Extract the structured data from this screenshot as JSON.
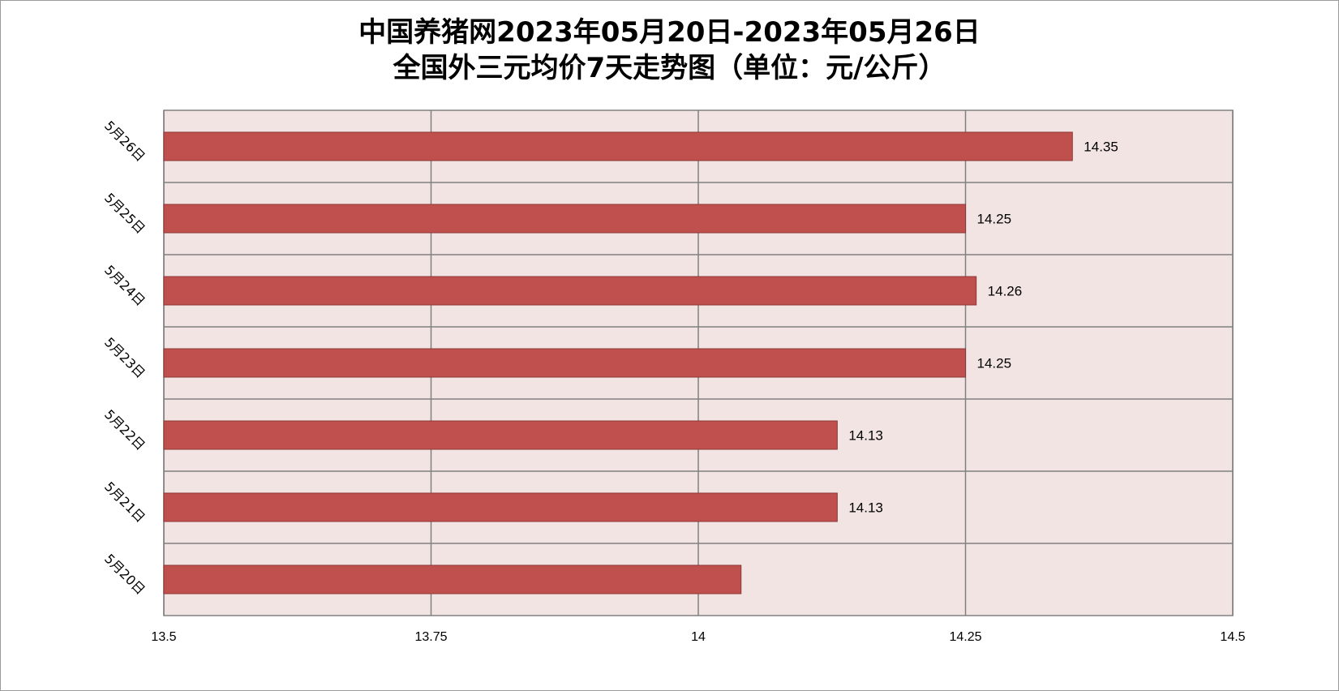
{
  "chart_data": {
    "type": "bar",
    "orientation": "horizontal",
    "title": [
      "中国养猪网2023年05月20日-2023年05月26日",
      "全国外三元均价7天走势图（单位：元/公斤）"
    ],
    "categories": [
      "5月26日",
      "5月25日",
      "5月24日",
      "5月23日",
      "5月22日",
      "5月21日",
      "5月20日"
    ],
    "values": [
      14.35,
      14.25,
      14.26,
      14.25,
      14.13,
      14.13,
      14.04
    ],
    "data_labels": [
      "14.35",
      "14.25",
      "14.26",
      "14.25",
      "14.13",
      "14.13",
      ""
    ],
    "xlim": [
      13.5,
      14.5
    ],
    "xticks": [
      "13.5",
      "13.75",
      "14",
      "14.25",
      "14.5"
    ],
    "xlabel": "",
    "ylabel": "",
    "grid": true,
    "legend": "none",
    "colors": {
      "bar": "#c0504d",
      "bar_edge": "#8c3836",
      "plot_bg": "#f2e4e3",
      "grid": "#808080"
    }
  }
}
